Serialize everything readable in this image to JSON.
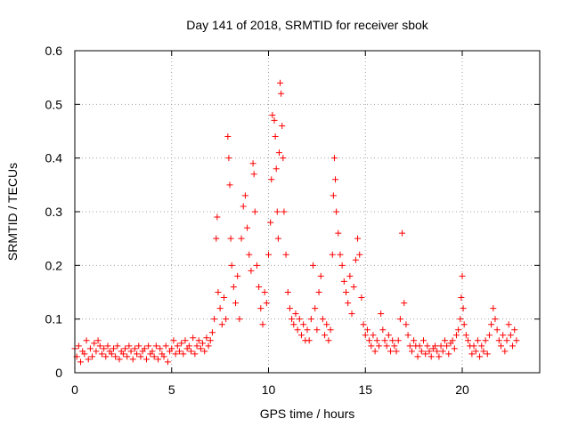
{
  "chart_data": {
    "type": "scatter",
    "title": "Day 141 of 2018, SRMTID for receiver sbok",
    "xlabel": "GPS time / hours",
    "ylabel": "SRMTID / TECUs",
    "xlim": [
      0,
      24
    ],
    "ylim": [
      0,
      0.6
    ],
    "xticks": [
      0,
      5,
      10,
      15,
      20
    ],
    "xtick_labels": [
      "0",
      "5",
      "10",
      "15",
      "20"
    ],
    "yticks": [
      0,
      0.1,
      0.2,
      0.3,
      0.4,
      0.5,
      0.6
    ],
    "ytick_labels": [
      "0",
      "0.1",
      "0.2",
      "0.3",
      "0.4",
      "0.5",
      "0.6"
    ],
    "grid": true,
    "marker": "plus",
    "color": "#ff0000",
    "series": [
      {
        "name": "sbok",
        "points": [
          [
            0.0,
            0.045
          ],
          [
            0.1,
            0.03
          ],
          [
            0.2,
            0.05
          ],
          [
            0.3,
            0.02
          ],
          [
            0.4,
            0.04
          ],
          [
            0.5,
            0.035
          ],
          [
            0.6,
            0.06
          ],
          [
            0.7,
            0.025
          ],
          [
            0.8,
            0.045
          ],
          [
            0.9,
            0.03
          ],
          [
            1.0,
            0.055
          ],
          [
            1.1,
            0.04
          ],
          [
            1.2,
            0.06
          ],
          [
            1.3,
            0.05
          ],
          [
            1.4,
            0.035
          ],
          [
            1.5,
            0.045
          ],
          [
            1.6,
            0.03
          ],
          [
            1.7,
            0.05
          ],
          [
            1.8,
            0.04
          ],
          [
            1.9,
            0.035
          ],
          [
            2.0,
            0.045
          ],
          [
            2.1,
            0.03
          ],
          [
            2.2,
            0.05
          ],
          [
            2.3,
            0.025
          ],
          [
            2.4,
            0.04
          ],
          [
            2.5,
            0.035
          ],
          [
            2.6,
            0.045
          ],
          [
            2.7,
            0.03
          ],
          [
            2.8,
            0.05
          ],
          [
            2.9,
            0.04
          ],
          [
            3.0,
            0.025
          ],
          [
            3.1,
            0.045
          ],
          [
            3.2,
            0.035
          ],
          [
            3.3,
            0.05
          ],
          [
            3.4,
            0.03
          ],
          [
            3.5,
            0.04
          ],
          [
            3.6,
            0.045
          ],
          [
            3.7,
            0.025
          ],
          [
            3.8,
            0.05
          ],
          [
            3.9,
            0.035
          ],
          [
            4.0,
            0.04
          ],
          [
            4.1,
            0.03
          ],
          [
            4.2,
            0.05
          ],
          [
            4.3,
            0.025
          ],
          [
            4.4,
            0.045
          ],
          [
            4.5,
            0.035
          ],
          [
            4.6,
            0.03
          ],
          [
            4.7,
            0.05
          ],
          [
            4.8,
            0.02
          ],
          [
            4.9,
            0.04
          ],
          [
            5.0,
            0.045
          ],
          [
            5.1,
            0.06
          ],
          [
            5.2,
            0.035
          ],
          [
            5.3,
            0.05
          ],
          [
            5.4,
            0.04
          ],
          [
            5.5,
            0.055
          ],
          [
            5.6,
            0.035
          ],
          [
            5.7,
            0.06
          ],
          [
            5.8,
            0.045
          ],
          [
            5.9,
            0.05
          ],
          [
            6.0,
            0.04
          ],
          [
            6.1,
            0.065
          ],
          [
            6.2,
            0.035
          ],
          [
            6.3,
            0.05
          ],
          [
            6.4,
            0.06
          ],
          [
            6.5,
            0.045
          ],
          [
            6.6,
            0.055
          ],
          [
            6.7,
            0.04
          ],
          [
            6.8,
            0.065
          ],
          [
            6.9,
            0.05
          ],
          [
            7.0,
            0.06
          ],
          [
            7.1,
            0.075
          ],
          [
            7.2,
            0.1
          ],
          [
            7.3,
            0.25
          ],
          [
            7.35,
            0.29
          ],
          [
            7.4,
            0.15
          ],
          [
            7.5,
            0.12
          ],
          [
            7.6,
            0.09
          ],
          [
            7.7,
            0.14
          ],
          [
            7.8,
            0.1
          ],
          [
            7.9,
            0.44
          ],
          [
            7.95,
            0.4
          ],
          [
            8.0,
            0.35
          ],
          [
            8.05,
            0.25
          ],
          [
            8.1,
            0.2
          ],
          [
            8.2,
            0.16
          ],
          [
            8.3,
            0.13
          ],
          [
            8.4,
            0.18
          ],
          [
            8.5,
            0.1
          ],
          [
            8.6,
            0.25
          ],
          [
            8.7,
            0.31
          ],
          [
            8.8,
            0.33
          ],
          [
            8.9,
            0.27
          ],
          [
            9.0,
            0.22
          ],
          [
            9.1,
            0.19
          ],
          [
            9.2,
            0.39
          ],
          [
            9.25,
            0.37
          ],
          [
            9.3,
            0.3
          ],
          [
            9.4,
            0.2
          ],
          [
            9.5,
            0.16
          ],
          [
            9.6,
            0.12
          ],
          [
            9.7,
            0.09
          ],
          [
            9.8,
            0.15
          ],
          [
            9.9,
            0.13
          ],
          [
            10.0,
            0.22
          ],
          [
            10.1,
            0.28
          ],
          [
            10.15,
            0.36
          ],
          [
            10.2,
            0.48
          ],
          [
            10.3,
            0.47
          ],
          [
            10.35,
            0.44
          ],
          [
            10.4,
            0.38
          ],
          [
            10.45,
            0.3
          ],
          [
            10.5,
            0.25
          ],
          [
            10.55,
            0.41
          ],
          [
            10.6,
            0.54
          ],
          [
            10.65,
            0.52
          ],
          [
            10.7,
            0.46
          ],
          [
            10.75,
            0.4
          ],
          [
            10.8,
            0.3
          ],
          [
            10.9,
            0.22
          ],
          [
            11.0,
            0.15
          ],
          [
            11.1,
            0.12
          ],
          [
            11.2,
            0.1
          ],
          [
            11.3,
            0.09
          ],
          [
            11.4,
            0.11
          ],
          [
            11.5,
            0.08
          ],
          [
            11.6,
            0.1
          ],
          [
            11.7,
            0.07
          ],
          [
            11.8,
            0.09
          ],
          [
            11.9,
            0.06
          ],
          [
            12.0,
            0.08
          ],
          [
            12.1,
            0.06
          ],
          [
            12.2,
            0.1
          ],
          [
            12.3,
            0.2
          ],
          [
            12.4,
            0.12
          ],
          [
            12.5,
            0.08
          ],
          [
            12.6,
            0.15
          ],
          [
            12.7,
            0.18
          ],
          [
            12.8,
            0.1
          ],
          [
            12.9,
            0.07
          ],
          [
            13.0,
            0.09
          ],
          [
            13.1,
            0.06
          ],
          [
            13.2,
            0.08
          ],
          [
            13.3,
            0.22
          ],
          [
            13.35,
            0.33
          ],
          [
            13.4,
            0.4
          ],
          [
            13.45,
            0.36
          ],
          [
            13.5,
            0.3
          ],
          [
            13.6,
            0.26
          ],
          [
            13.7,
            0.22
          ],
          [
            13.8,
            0.2
          ],
          [
            13.9,
            0.17
          ],
          [
            14.0,
            0.15
          ],
          [
            14.1,
            0.13
          ],
          [
            14.2,
            0.18
          ],
          [
            14.3,
            0.11
          ],
          [
            14.4,
            0.16
          ],
          [
            14.5,
            0.21
          ],
          [
            14.6,
            0.25
          ],
          [
            14.7,
            0.22
          ],
          [
            14.8,
            0.14
          ],
          [
            14.9,
            0.09
          ],
          [
            15.0,
            0.07
          ],
          [
            15.1,
            0.08
          ],
          [
            15.2,
            0.06
          ],
          [
            15.3,
            0.05
          ],
          [
            15.4,
            0.07
          ],
          [
            15.5,
            0.04
          ],
          [
            15.6,
            0.06
          ],
          [
            15.7,
            0.05
          ],
          [
            15.8,
            0.11
          ],
          [
            15.9,
            0.08
          ],
          [
            16.0,
            0.06
          ],
          [
            16.1,
            0.05
          ],
          [
            16.2,
            0.07
          ],
          [
            16.3,
            0.04
          ],
          [
            16.4,
            0.06
          ],
          [
            16.5,
            0.05
          ],
          [
            16.6,
            0.04
          ],
          [
            16.7,
            0.06
          ],
          [
            16.8,
            0.1
          ],
          [
            16.9,
            0.26
          ],
          [
            17.0,
            0.13
          ],
          [
            17.1,
            0.09
          ],
          [
            17.2,
            0.07
          ],
          [
            17.3,
            0.05
          ],
          [
            17.4,
            0.04
          ],
          [
            17.5,
            0.06
          ],
          [
            17.6,
            0.05
          ],
          [
            17.7,
            0.03
          ],
          [
            17.8,
            0.05
          ],
          [
            17.9,
            0.04
          ],
          [
            18.0,
            0.06
          ],
          [
            18.1,
            0.035
          ],
          [
            18.2,
            0.05
          ],
          [
            18.3,
            0.04
          ],
          [
            18.4,
            0.03
          ],
          [
            18.5,
            0.045
          ],
          [
            18.6,
            0.05
          ],
          [
            18.7,
            0.04
          ],
          [
            18.8,
            0.03
          ],
          [
            18.9,
            0.05
          ],
          [
            19.0,
            0.04
          ],
          [
            19.1,
            0.06
          ],
          [
            19.2,
            0.05
          ],
          [
            19.3,
            0.035
          ],
          [
            19.4,
            0.055
          ],
          [
            19.5,
            0.06
          ],
          [
            19.6,
            0.045
          ],
          [
            19.7,
            0.07
          ],
          [
            19.8,
            0.08
          ],
          [
            19.9,
            0.1
          ],
          [
            19.95,
            0.14
          ],
          [
            20.0,
            0.18
          ],
          [
            20.05,
            0.12
          ],
          [
            20.1,
            0.09
          ],
          [
            20.2,
            0.07
          ],
          [
            20.3,
            0.06
          ],
          [
            20.4,
            0.05
          ],
          [
            20.5,
            0.035
          ],
          [
            20.6,
            0.05
          ],
          [
            20.7,
            0.04
          ],
          [
            20.8,
            0.06
          ],
          [
            20.9,
            0.03
          ],
          [
            21.0,
            0.05
          ],
          [
            21.1,
            0.04
          ],
          [
            21.2,
            0.06
          ],
          [
            21.3,
            0.035
          ],
          [
            21.4,
            0.07
          ],
          [
            21.5,
            0.09
          ],
          [
            21.6,
            0.12
          ],
          [
            21.7,
            0.1
          ],
          [
            21.8,
            0.08
          ],
          [
            21.9,
            0.06
          ],
          [
            22.0,
            0.05
          ],
          [
            22.1,
            0.07
          ],
          [
            22.2,
            0.04
          ],
          [
            22.3,
            0.06
          ],
          [
            22.4,
            0.09
          ],
          [
            22.5,
            0.07
          ],
          [
            22.6,
            0.05
          ],
          [
            22.7,
            0.08
          ],
          [
            22.8,
            0.06
          ]
        ]
      }
    ]
  }
}
